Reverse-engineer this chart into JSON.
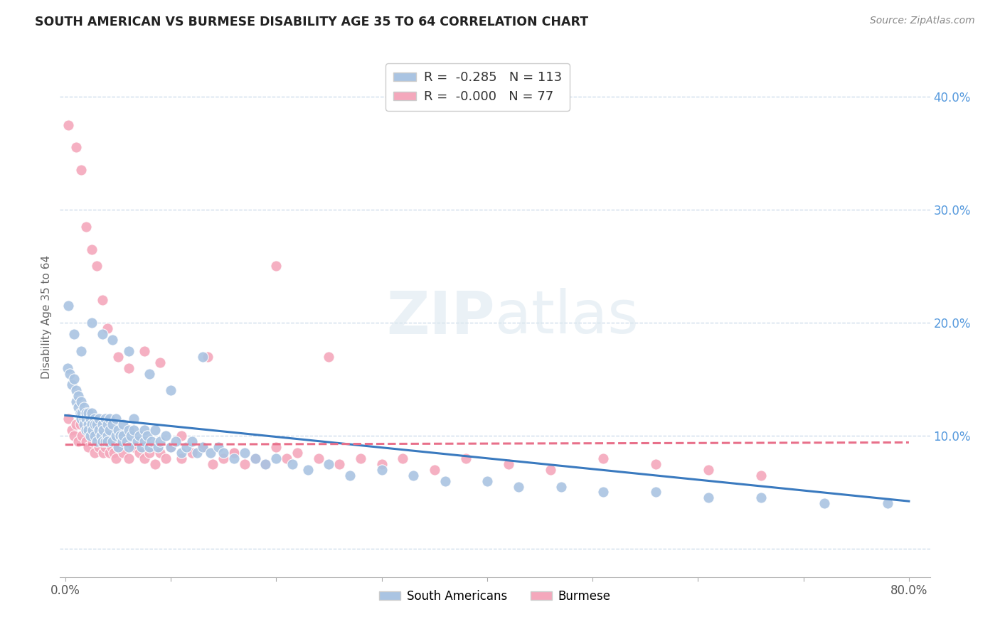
{
  "title": "SOUTH AMERICAN VS BURMESE DISABILITY AGE 35 TO 64 CORRELATION CHART",
  "source": "Source: ZipAtlas.com",
  "ylabel": "Disability Age 35 to 64",
  "xlim": [
    -0.005,
    0.82
  ],
  "ylim": [
    -0.025,
    0.435
  ],
  "xticks": [
    0.0,
    0.1,
    0.2,
    0.3,
    0.4,
    0.5,
    0.6,
    0.7,
    0.8
  ],
  "yticks_right": [
    0.0,
    0.1,
    0.2,
    0.3,
    0.4
  ],
  "blue_R": "-0.285",
  "blue_N": "113",
  "pink_R": "-0.000",
  "pink_N": "77",
  "blue_color": "#aac4e2",
  "pink_color": "#f4a8bc",
  "blue_line_color": "#3a7abf",
  "pink_line_color": "#e8708a",
  "grid_color": "#c8d8e8",
  "legend_label_blue": "South Americans",
  "legend_label_pink": "Burmese",
  "blue_scatter_x": [
    0.002,
    0.004,
    0.006,
    0.008,
    0.01,
    0.01,
    0.012,
    0.012,
    0.014,
    0.015,
    0.015,
    0.016,
    0.018,
    0.018,
    0.018,
    0.02,
    0.02,
    0.02,
    0.022,
    0.022,
    0.022,
    0.024,
    0.024,
    0.025,
    0.025,
    0.026,
    0.028,
    0.028,
    0.028,
    0.03,
    0.03,
    0.032,
    0.032,
    0.034,
    0.035,
    0.035,
    0.036,
    0.038,
    0.038,
    0.04,
    0.04,
    0.04,
    0.042,
    0.042,
    0.045,
    0.045,
    0.048,
    0.048,
    0.05,
    0.05,
    0.052,
    0.054,
    0.055,
    0.055,
    0.058,
    0.06,
    0.06,
    0.062,
    0.065,
    0.065,
    0.068,
    0.07,
    0.072,
    0.075,
    0.075,
    0.078,
    0.08,
    0.082,
    0.085,
    0.088,
    0.09,
    0.095,
    0.1,
    0.105,
    0.11,
    0.115,
    0.12,
    0.125,
    0.13,
    0.138,
    0.145,
    0.15,
    0.16,
    0.17,
    0.18,
    0.19,
    0.2,
    0.215,
    0.23,
    0.25,
    0.27,
    0.3,
    0.33,
    0.36,
    0.4,
    0.43,
    0.47,
    0.51,
    0.56,
    0.61,
    0.66,
    0.72,
    0.78,
    0.003,
    0.008,
    0.015,
    0.025,
    0.035,
    0.045,
    0.06,
    0.08,
    0.1,
    0.13
  ],
  "blue_scatter_y": [
    0.16,
    0.155,
    0.145,
    0.15,
    0.14,
    0.13,
    0.125,
    0.135,
    0.12,
    0.115,
    0.13,
    0.12,
    0.115,
    0.125,
    0.11,
    0.115,
    0.105,
    0.12,
    0.11,
    0.12,
    0.105,
    0.115,
    0.1,
    0.11,
    0.12,
    0.105,
    0.1,
    0.115,
    0.11,
    0.095,
    0.11,
    0.105,
    0.115,
    0.1,
    0.095,
    0.11,
    0.105,
    0.095,
    0.115,
    0.1,
    0.11,
    0.095,
    0.105,
    0.115,
    0.095,
    0.11,
    0.1,
    0.115,
    0.09,
    0.105,
    0.1,
    0.095,
    0.11,
    0.1,
    0.095,
    0.105,
    0.09,
    0.1,
    0.105,
    0.115,
    0.095,
    0.1,
    0.09,
    0.105,
    0.095,
    0.1,
    0.09,
    0.095,
    0.105,
    0.09,
    0.095,
    0.1,
    0.09,
    0.095,
    0.085,
    0.09,
    0.095,
    0.085,
    0.09,
    0.085,
    0.09,
    0.085,
    0.08,
    0.085,
    0.08,
    0.075,
    0.08,
    0.075,
    0.07,
    0.075,
    0.065,
    0.07,
    0.065,
    0.06,
    0.06,
    0.055,
    0.055,
    0.05,
    0.05,
    0.045,
    0.045,
    0.04,
    0.04,
    0.215,
    0.19,
    0.175,
    0.2,
    0.19,
    0.185,
    0.175,
    0.155,
    0.14,
    0.17
  ],
  "pink_scatter_x": [
    0.003,
    0.006,
    0.008,
    0.01,
    0.012,
    0.014,
    0.016,
    0.018,
    0.02,
    0.022,
    0.022,
    0.024,
    0.026,
    0.028,
    0.03,
    0.032,
    0.034,
    0.036,
    0.038,
    0.04,
    0.042,
    0.044,
    0.046,
    0.048,
    0.05,
    0.055,
    0.06,
    0.065,
    0.07,
    0.075,
    0.08,
    0.085,
    0.09,
    0.095,
    0.1,
    0.11,
    0.12,
    0.13,
    0.14,
    0.15,
    0.16,
    0.17,
    0.18,
    0.19,
    0.2,
    0.21,
    0.22,
    0.24,
    0.26,
    0.28,
    0.3,
    0.32,
    0.35,
    0.38,
    0.42,
    0.46,
    0.51,
    0.56,
    0.61,
    0.66,
    0.003,
    0.01,
    0.015,
    0.02,
    0.025,
    0.03,
    0.035,
    0.04,
    0.05,
    0.06,
    0.075,
    0.09,
    0.11,
    0.135,
    0.16,
    0.2,
    0.25
  ],
  "pink_scatter_y": [
    0.115,
    0.105,
    0.1,
    0.11,
    0.095,
    0.11,
    0.1,
    0.115,
    0.095,
    0.105,
    0.09,
    0.1,
    0.095,
    0.085,
    0.095,
    0.09,
    0.095,
    0.085,
    0.09,
    0.095,
    0.085,
    0.09,
    0.085,
    0.08,
    0.09,
    0.085,
    0.08,
    0.09,
    0.085,
    0.08,
    0.085,
    0.075,
    0.085,
    0.08,
    0.09,
    0.08,
    0.085,
    0.09,
    0.075,
    0.08,
    0.085,
    0.075,
    0.08,
    0.075,
    0.09,
    0.08,
    0.085,
    0.08,
    0.075,
    0.08,
    0.075,
    0.08,
    0.07,
    0.08,
    0.075,
    0.07,
    0.08,
    0.075,
    0.07,
    0.065,
    0.375,
    0.355,
    0.335,
    0.285,
    0.265,
    0.25,
    0.22,
    0.195,
    0.17,
    0.16,
    0.175,
    0.165,
    0.1,
    0.17,
    0.085,
    0.25,
    0.17
  ],
  "blue_trendline_x": [
    0.0,
    0.8
  ],
  "blue_trendline_y": [
    0.118,
    0.042
  ],
  "pink_trendline_x": [
    0.0,
    0.8
  ],
  "pink_trendline_y": [
    0.092,
    0.094
  ]
}
